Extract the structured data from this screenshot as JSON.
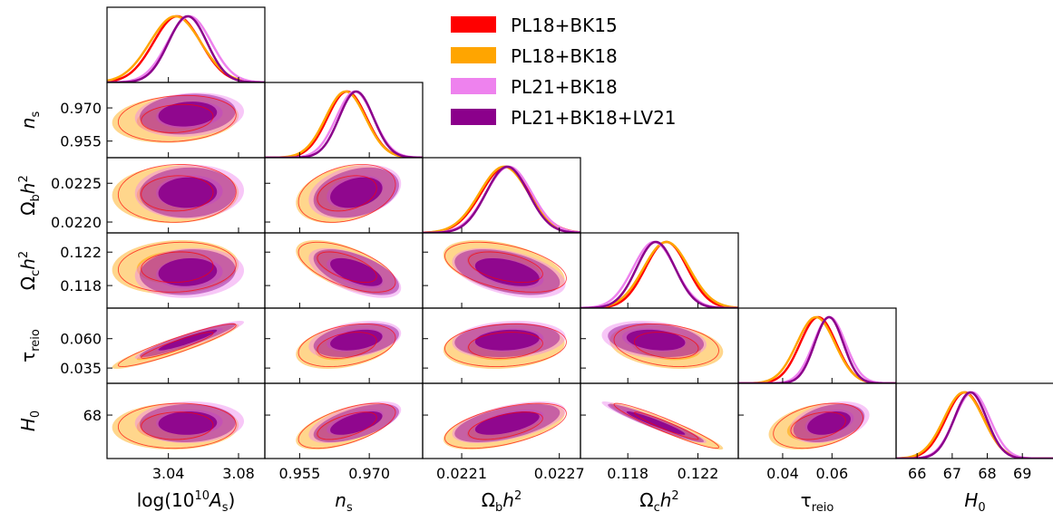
{
  "chart_data": {
    "type": "triangle-corner-plot",
    "parameters": [
      {
        "key": "logA",
        "label": "log(10",
        "label_sup": "10",
        "label_tail": "A",
        "label_sub": "s",
        "label_close": ")",
        "range": [
          3.005,
          3.095
        ],
        "ticks": [
          3.04,
          3.08
        ],
        "tick_labels": [
          "3.04",
          "3.08"
        ]
      },
      {
        "key": "ns",
        "label": "n",
        "label_sub": "s",
        "range": [
          0.9475,
          0.9815
        ],
        "ticks": [
          0.955,
          0.97
        ],
        "tick_labels": [
          "0.955",
          "0.970"
        ]
      },
      {
        "key": "ombh2",
        "label": "Ω",
        "label_sub": "b",
        "label_tail": "h",
        "label_sup": "2",
        "range": [
          0.02186,
          0.02283
        ],
        "ticks": [
          0.0221,
          0.0227
        ],
        "tick_labels": [
          "0.0221",
          "0.0227"
        ],
        "y_ticks": [
          0.022,
          0.0225
        ],
        "y_tick_labels": [
          "0.0220",
          "0.0225"
        ]
      },
      {
        "key": "omch2",
        "label": "Ω",
        "label_sub": "c",
        "label_tail": "h",
        "label_sup": "2",
        "range": [
          0.1153,
          0.1243
        ],
        "ticks": [
          0.118,
          0.122
        ],
        "tick_labels": [
          "0.118",
          "0.122"
        ]
      },
      {
        "key": "tau",
        "label": "τ",
        "label_sub": "reio",
        "range": [
          0.022,
          0.086
        ],
        "ticks": [
          0.04,
          0.06
        ],
        "tick_labels": [
          "0.04",
          "0.06"
        ],
        "y_ticks": [
          0.035,
          0.06
        ],
        "y_tick_labels": [
          "0.035",
          "0.060"
        ]
      },
      {
        "key": "H0",
        "label": "H",
        "label_sub": "0",
        "range": [
          65.4,
          69.9
        ],
        "ticks": [
          66,
          67,
          68,
          69
        ],
        "tick_labels": [
          "66",
          "67",
          "68",
          "69"
        ],
        "y_ticks": [
          68
        ],
        "y_tick_labels": [
          "68"
        ]
      }
    ],
    "series": [
      {
        "name": "PL18+BK15",
        "color": "#ff0000",
        "fill": false,
        "mean": [
          3.045,
          0.9652,
          0.02237,
          0.1202,
          0.0544,
          67.36
        ],
        "sigma": [
          0.0135,
          0.0042,
          0.00015,
          0.0012,
          0.0073,
          0.54
        ]
      },
      {
        "name": "PL18+BK18",
        "color": "#ffa500",
        "fill": true,
        "mean": [
          3.044,
          0.9649,
          0.02236,
          0.1202,
          0.0535,
          67.33
        ],
        "sigma": [
          0.0145,
          0.0043,
          0.00015,
          0.0013,
          0.0077,
          0.56
        ]
      },
      {
        "name": "PL21+BK18",
        "color": "#ee82ee",
        "fill": true,
        "mean": [
          3.052,
          0.9669,
          0.02239,
          0.1195,
          0.059,
          67.57
        ],
        "sigma": [
          0.0125,
          0.004,
          0.00014,
          0.0012,
          0.0065,
          0.5
        ]
      },
      {
        "name": "PL21+BK18+LV21",
        "color": "#8b008b",
        "fill": true,
        "mean": [
          3.051,
          0.9672,
          0.02238,
          0.1196,
          0.0588,
          67.52
        ],
        "sigma": [
          0.011,
          0.0037,
          0.00013,
          0.0011,
          0.0058,
          0.46
        ]
      }
    ],
    "correlations": {
      "ns|logA": 0.15,
      "ombh2|logA": 0.05,
      "ombh2|ns": 0.3,
      "omch2|logA": 0.1,
      "omch2|ns": -0.6,
      "omch2|ombh2": -0.45,
      "tau|logA": 0.93,
      "tau|ns": 0.35,
      "tau|ombh2": 0.15,
      "tau|omch2": -0.25,
      "H0|logA": 0.05,
      "H0|ns": 0.6,
      "H0|ombh2": 0.55,
      "H0|omch2": -0.95,
      "H0|tau": 0.35
    },
    "legend": {
      "position": "top-right"
    }
  }
}
